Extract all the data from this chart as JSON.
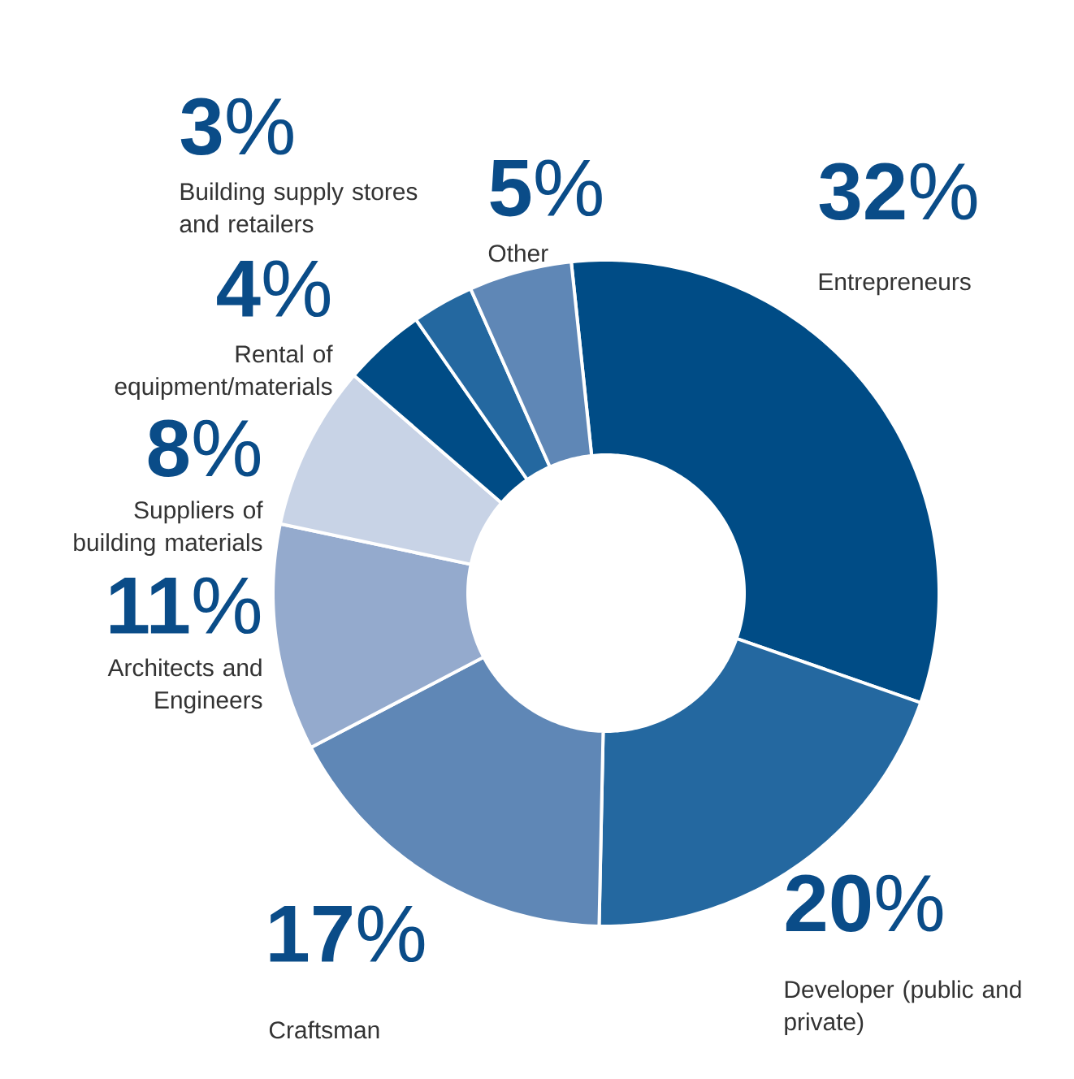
{
  "chart_data": {
    "type": "donut",
    "categories": [
      "Entrepreneurs",
      "Developer (public and private)",
      "Craftsman",
      "Architects and Engineers",
      "Suppliers of building materials",
      "Rental of equipment/materials",
      "Building supply stores and retailers",
      "Other"
    ],
    "values": [
      32,
      20,
      17,
      11,
      8,
      4,
      3,
      5
    ],
    "value_labels": [
      "**32**%",
      "**20**%",
      "**17**%",
      "**11**%",
      "**8**%",
      "**4**%",
      "**3**%",
      "**5**%"
    ],
    "colors": [
      "#004c86",
      "#2468a0",
      "#5f87b6",
      "#94aacd",
      "#c8d3e6",
      "#004c86",
      "#2468a0",
      "#5f87b6"
    ]
  }
}
